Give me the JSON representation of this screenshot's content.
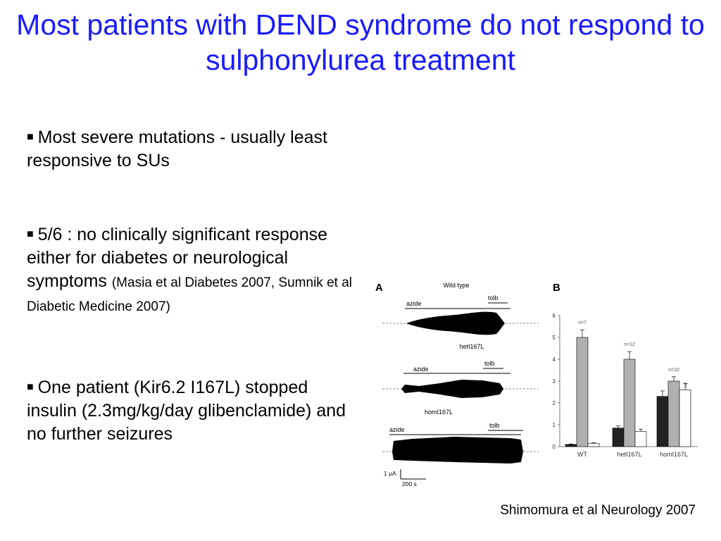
{
  "slide": {
    "title": "Most patients with DEND syndrome do not respond to sulphonylurea treatment",
    "bullets": [
      {
        "marker": "■",
        "text": "Most severe mutations - usually least responsive to SUs"
      },
      {
        "marker": "■",
        "text": "5/6 : no clinically significant response either for diabetes or neurological symptoms",
        "reference": "(Masia et al Diabetes 2007, Sumnik et al Diabetic Medicine 2007)"
      },
      {
        "marker": "■",
        "text": "One patient (Kir6.2 I167L) stopped insulin (2.3mg/kg/day glibenclamide) and no further seizures"
      }
    ],
    "citation": "Shimomura et al Neurology 2007"
  },
  "figure": {
    "panel_a": {
      "label": "A",
      "traces": [
        {
          "title": "Wild type",
          "drug1": "azide",
          "drug2": "tolb"
        },
        {
          "title": "hetI167L",
          "drug1": "azide",
          "drug2": "tolb"
        },
        {
          "title": "homI167L",
          "drug1": "azide",
          "drug2": "tolb"
        }
      ],
      "scale_current": "1 μA",
      "scale_time": "200 s"
    },
    "panel_b": {
      "label": "B",
      "n_labels": [
        "n=7",
        "n=12",
        "n=10"
      ],
      "extra_mark": "T"
    }
  },
  "chart_data": {
    "type": "bar",
    "categories": [
      "WT",
      "hetI167L",
      "homI167L"
    ],
    "series": [
      {
        "values": [
          0.1,
          0.85,
          2.3
        ],
        "errors": [
          0.02,
          0.1,
          0.25
        ],
        "color": "#222222"
      },
      {
        "values": [
          5.0,
          4.0,
          3.0
        ],
        "errors": [
          0.35,
          0.35,
          0.2
        ],
        "color": "#b0b0b0"
      },
      {
        "values": [
          0.15,
          0.7,
          2.6
        ],
        "errors": [
          0.02,
          0.1,
          0.3
        ],
        "color": "#ffffff"
      }
    ],
    "ylim": [
      0,
      6
    ],
    "yticks": [
      "0",
      "1",
      "2",
      "3",
      "4",
      "5",
      "6"
    ],
    "xlabel": "",
    "ylabel": ""
  }
}
